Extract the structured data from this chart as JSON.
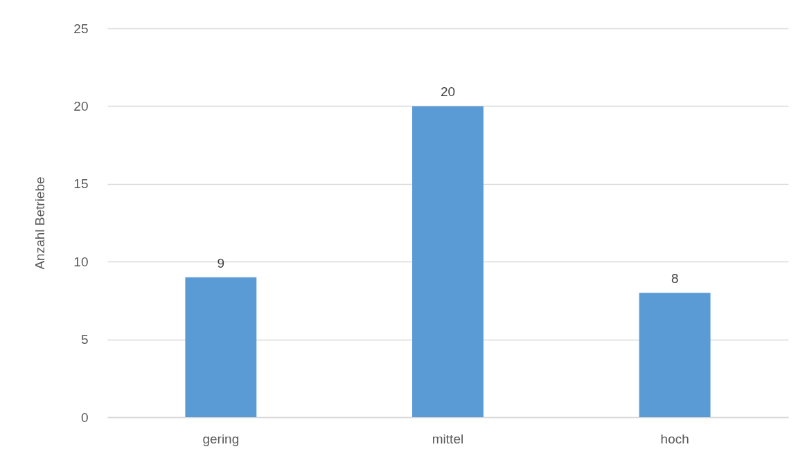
{
  "chart_data": {
    "type": "bar",
    "ylabel": "Anzahl Betriebe",
    "categories": [
      "gering",
      "mittel",
      "hoch"
    ],
    "values": [
      9,
      20,
      8
    ],
    "color": "#5b9bd5",
    "ylim": [
      0,
      25
    ],
    "yticks": [
      0,
      5,
      10,
      15,
      20,
      25
    ],
    "grid": "y",
    "data_labels": true
  }
}
